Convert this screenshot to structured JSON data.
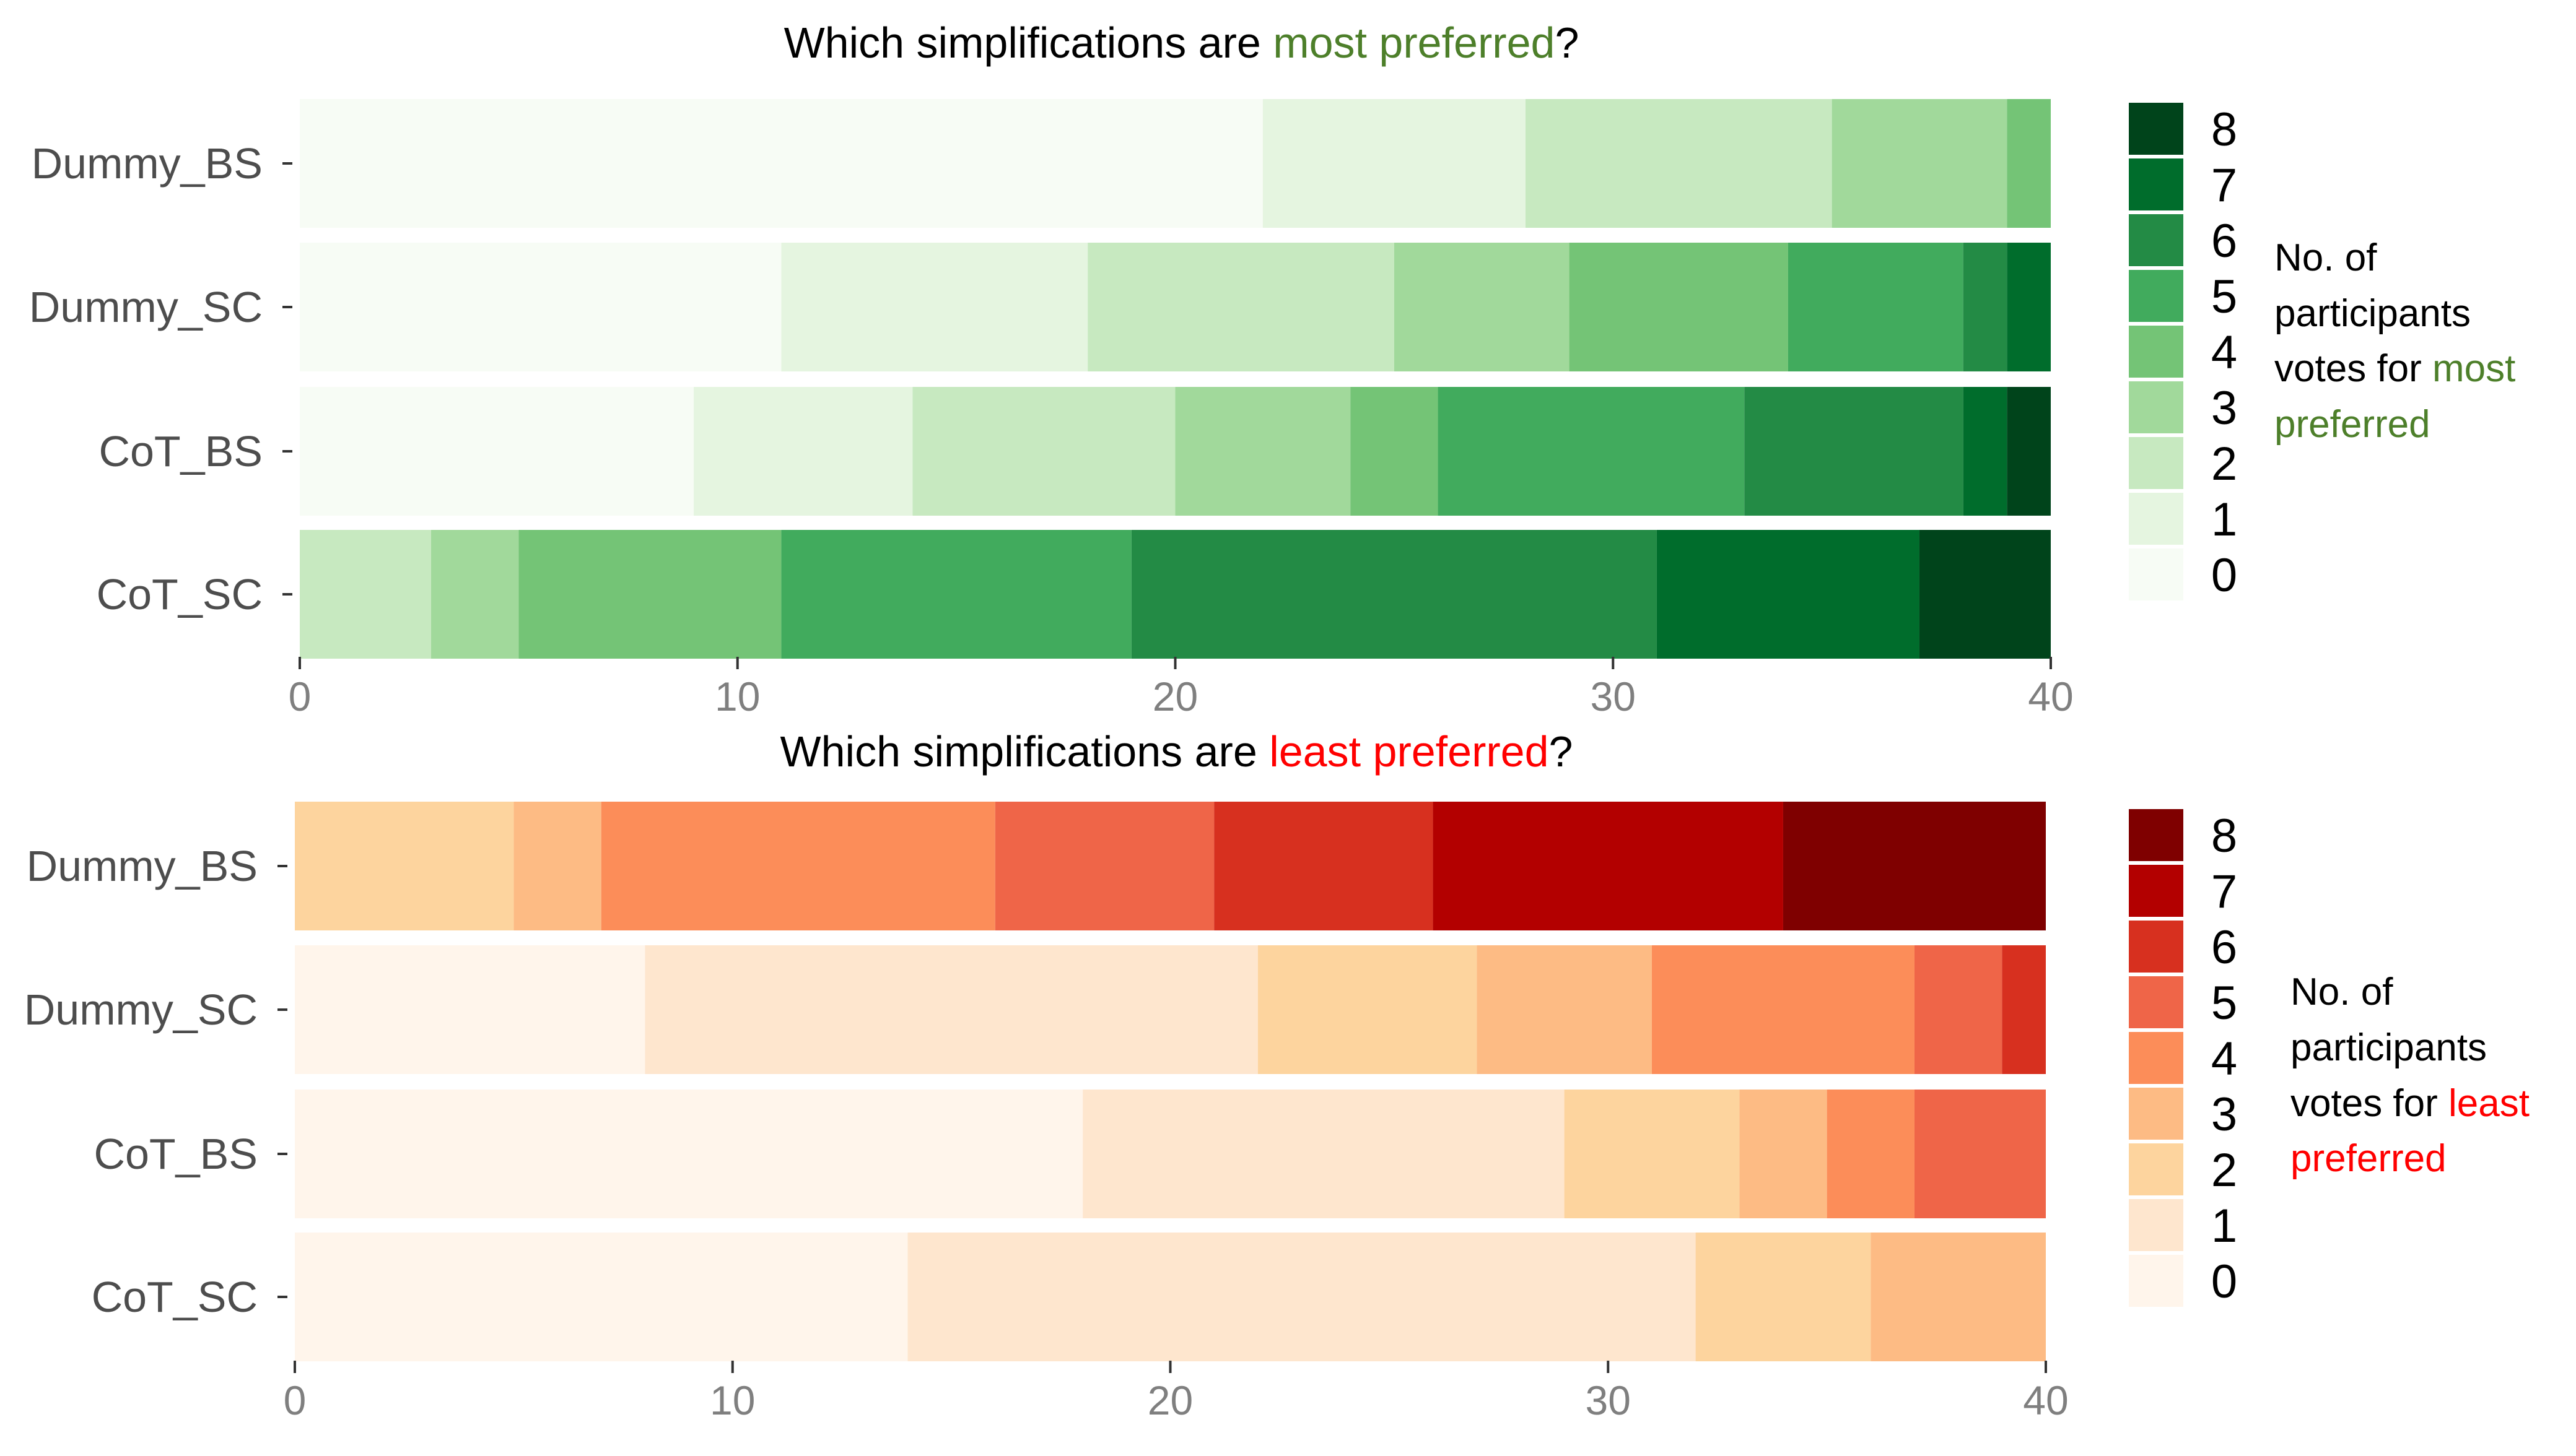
{
  "chart_data": [
    {
      "type": "bar",
      "orientation": "horizontal",
      "stacked": true,
      "title_parts": [
        "Which simplifications are ",
        "most preferred",
        "?"
      ],
      "title_highlight_color": "#4d7f2a",
      "categories": [
        "Dummy_BS",
        "Dummy_SC",
        "CoT_BS",
        "CoT_SC"
      ],
      "xlim": [
        0,
        40
      ],
      "xticks": [
        0,
        10,
        20,
        30,
        40
      ],
      "grid": false,
      "legend_position": "right",
      "legend_caption_lines": [
        [
          "No. of"
        ],
        [
          "participants"
        ],
        [
          "votes for ",
          "most"
        ],
        [
          "preferred"
        ]
      ],
      "legend_caption_highlight_color": "#4d7f2a",
      "series": [
        {
          "name": "0",
          "color": "#f7fcf5",
          "values": [
            22,
            11,
            9,
            0
          ]
        },
        {
          "name": "1",
          "color": "#e5f5e0",
          "values": [
            6,
            7,
            5,
            0
          ]
        },
        {
          "name": "2",
          "color": "#c7e9c0",
          "values": [
            7,
            7,
            6,
            3
          ]
        },
        {
          "name": "3",
          "color": "#a1d99b",
          "values": [
            4,
            4,
            4,
            2
          ]
        },
        {
          "name": "4",
          "color": "#74c476",
          "values": [
            1,
            5,
            2,
            6
          ]
        },
        {
          "name": "5",
          "color": "#41ab5d",
          "values": [
            0,
            4,
            7,
            8
          ]
        },
        {
          "name": "6",
          "color": "#238b45",
          "values": [
            0,
            1,
            5,
            12
          ]
        },
        {
          "name": "7",
          "color": "#006d2c",
          "values": [
            0,
            1,
            1,
            6
          ]
        },
        {
          "name": "8",
          "color": "#00441b",
          "values": [
            0,
            0,
            1,
            3
          ]
        }
      ]
    },
    {
      "type": "bar",
      "orientation": "horizontal",
      "stacked": true,
      "title_parts": [
        "Which simplifications are ",
        "least preferred",
        "?"
      ],
      "title_highlight_color": "#ff0000",
      "categories": [
        "Dummy_BS",
        "Dummy_SC",
        "CoT_BS",
        "CoT_SC"
      ],
      "xlim": [
        0,
        40
      ],
      "xticks": [
        0,
        10,
        20,
        30,
        40
      ],
      "grid": false,
      "legend_position": "right",
      "legend_caption_lines": [
        [
          "No. of"
        ],
        [
          "participants"
        ],
        [
          "votes for ",
          "least"
        ],
        [
          "preferred"
        ]
      ],
      "legend_caption_highlight_color": "#ff0000",
      "series": [
        {
          "name": "0",
          "color": "#fff5eb",
          "values": [
            0,
            8,
            18,
            14
          ]
        },
        {
          "name": "1",
          "color": "#fee6ce",
          "values": [
            0,
            14,
            11,
            18
          ]
        },
        {
          "name": "2",
          "color": "#fdd49e",
          "values": [
            5,
            5,
            4,
            4
          ]
        },
        {
          "name": "3",
          "color": "#fdbb84",
          "values": [
            2,
            4,
            2,
            4
          ]
        },
        {
          "name": "4",
          "color": "#fc8d59",
          "values": [
            9,
            6,
            2,
            0
          ]
        },
        {
          "name": "5",
          "color": "#ef6548",
          "values": [
            5,
            2,
            3,
            0
          ]
        },
        {
          "name": "6",
          "color": "#d7301f",
          "values": [
            5,
            1,
            0,
            0
          ]
        },
        {
          "name": "7",
          "color": "#b30000",
          "values": [
            8,
            0,
            0,
            0
          ]
        },
        {
          "name": "8",
          "color": "#7f0000",
          "values": [
            6,
            0,
            0,
            0
          ]
        }
      ]
    }
  ]
}
